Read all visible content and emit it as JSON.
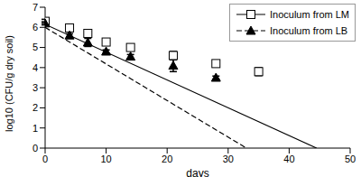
{
  "chart_data": {
    "type": "scatter",
    "x_label": "days",
    "y_label": "log10 (CFU/g dry soil)",
    "xlim": [
      0,
      50
    ],
    "xticks": [
      0,
      10,
      20,
      30,
      40,
      50
    ],
    "ylim": [
      0,
      7
    ],
    "yticks": [
      0,
      1,
      2,
      3,
      4,
      5,
      6,
      7
    ],
    "legend": "upper right",
    "series": [
      {
        "name": "Inoculum from LM",
        "color": "#000000",
        "marker": "square",
        "line_style": "solid",
        "x": [
          0,
          4,
          7,
          10,
          14,
          21,
          28,
          35
        ],
        "values": [
          6.3,
          5.97,
          5.7,
          5.27,
          5.0,
          4.6,
          4.2,
          3.8
        ],
        "error": [
          0.1,
          0.1,
          0.1,
          0.08,
          0.08,
          0.2,
          0.1,
          0.2
        ],
        "trendline": {
          "x": [
            0,
            44.5
          ],
          "values": [
            6.15,
            0
          ]
        }
      },
      {
        "name": "Inoculum from LB",
        "color": "#000000",
        "marker": "triangle",
        "line_style": "dashed",
        "x": [
          0,
          4,
          7,
          10,
          14,
          21,
          28
        ],
        "values": [
          6.2,
          5.6,
          5.25,
          4.8,
          4.55,
          4.1,
          3.5
        ],
        "error": [
          0.08,
          0.08,
          0.2,
          0.08,
          0.1,
          0.3,
          0.08
        ],
        "trendline": {
          "x": [
            0,
            33
          ],
          "values": [
            6.0,
            0
          ]
        }
      }
    ]
  }
}
